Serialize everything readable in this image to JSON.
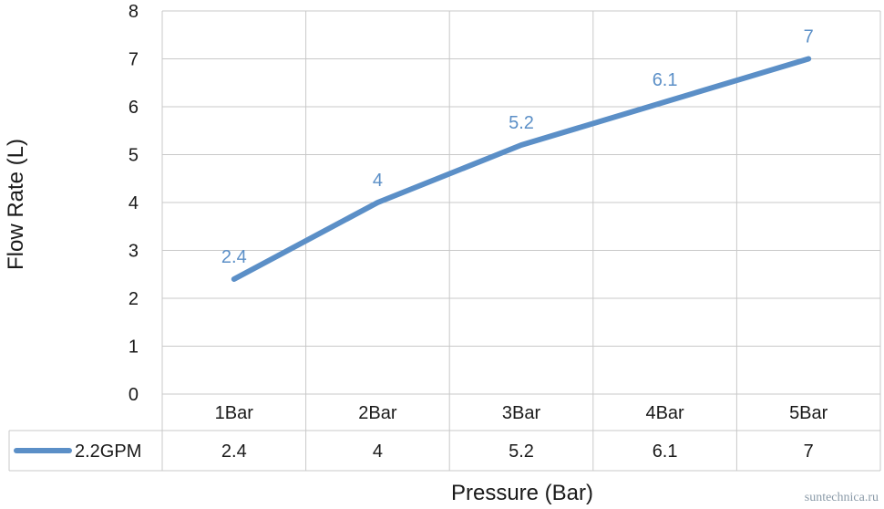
{
  "chart_data": {
    "type": "line",
    "categories": [
      "1Bar",
      "2Bar",
      "3Bar",
      "4Bar",
      "5Bar"
    ],
    "series": [
      {
        "name": "2.2GPM",
        "values": [
          2.4,
          4,
          5.2,
          6.1,
          7
        ]
      }
    ],
    "ylim": [
      0,
      8
    ],
    "yticks": [
      "0",
      "1",
      "2",
      "3",
      "4",
      "5",
      "6",
      "7",
      "8"
    ],
    "xlabel": "Pressure (Bar)",
    "ylabel": "Flow Rate (L)",
    "data_labels": [
      "2.4",
      "4",
      "5.2",
      "6.1",
      "7"
    ],
    "data_table": [
      [
        "2.4",
        "4",
        "5.2",
        "6.1",
        "7"
      ]
    ],
    "grid": true,
    "legend": "data-table",
    "line_color": "#5b8fc7"
  },
  "watermark": "suntechnica.ru"
}
